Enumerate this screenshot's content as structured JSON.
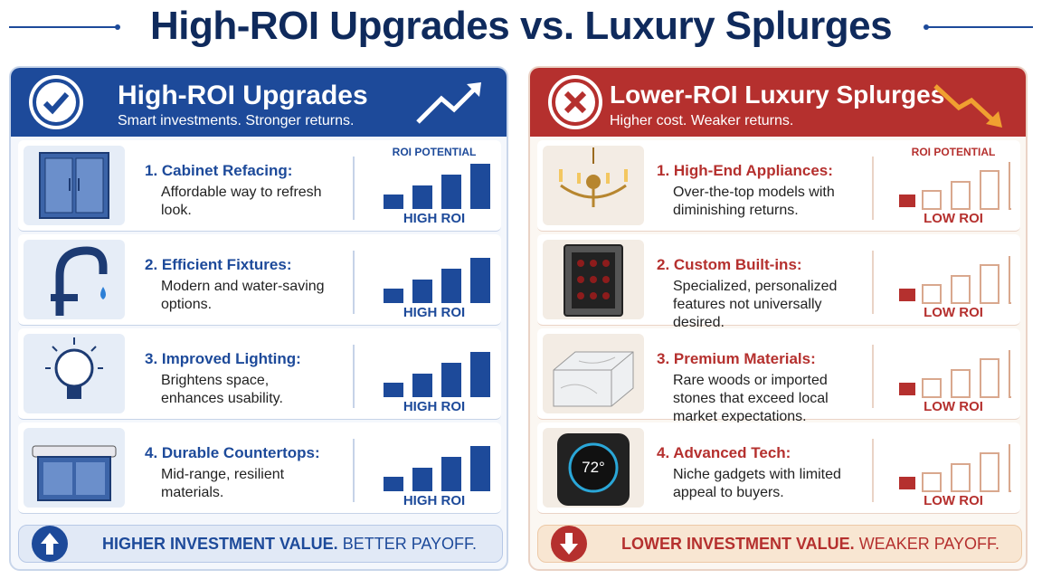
{
  "title": "High-ROI Upgrades vs. Luxury Splurges",
  "left_panel": {
    "heading": "High-ROI Upgrades",
    "subheading": "Smart investments. Stronger returns.",
    "roi_label": "ROI POTENTIAL",
    "items": [
      {
        "title": "1. Cabinet Refacing:",
        "description": "Affordable way to refresh look.",
        "rating": "HIGH ROI"
      },
      {
        "title": "2. Efficient Fixtures:",
        "description": "Modern and water-saving options.",
        "rating": "HIGH ROI"
      },
      {
        "title": "3. Improved Lighting:",
        "description": "Brightens space, enhances usability.",
        "rating": "HIGH ROI"
      },
      {
        "title": "4. Durable Countertops:",
        "description": "Mid-range, resilient materials.",
        "rating": "HIGH ROI"
      }
    ],
    "footer_bold": "HIGHER INVESTMENT VALUE.",
    "footer_text": "BETTER PAYOFF."
  },
  "right_panel": {
    "heading": "Lower-ROI Luxury Splurges",
    "subheading": "Higher cost. Weaker returns.",
    "roi_label": "ROI POTENTIAL",
    "items": [
      {
        "title": "1. High-End Appliances:",
        "description": "Over-the-top models with diminishing returns.",
        "rating": "LOW ROI"
      },
      {
        "title": "2. Custom Built-ins:",
        "description": "Specialized, personalized features not universally desired.",
        "rating": "LOW ROI"
      },
      {
        "title": "3. Premium Materials:",
        "description": "Rare woods or imported stones that exceed local market expectations.",
        "rating": "LOW ROI"
      },
      {
        "title": "4. Advanced Tech:",
        "description": "Niche gadgets with limited appeal to buyers.",
        "rating": "LOW ROI",
        "icon_text": "72°"
      }
    ],
    "footer_bold": "LOWER INVESTMENT VALUE.",
    "footer_text": "WEAKER PAYOFF."
  }
}
